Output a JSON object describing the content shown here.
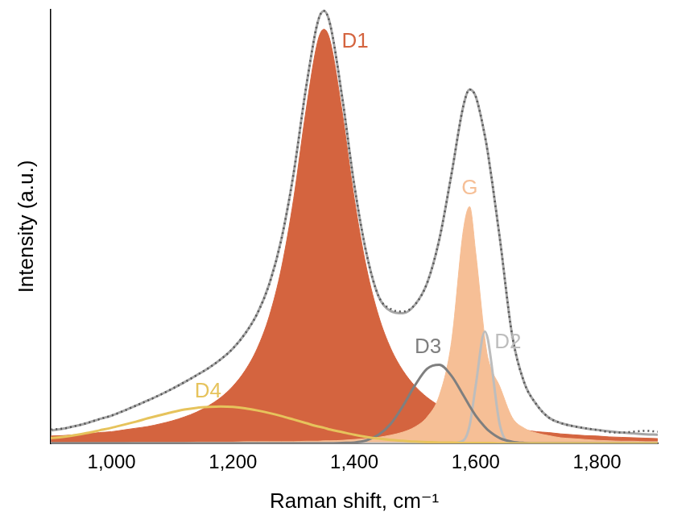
{
  "chart_data": {
    "type": "line",
    "x_label": "Raman shift, cm⁻¹",
    "y_label": "Intensity (a.u.)",
    "x": [
      900,
      920,
      940,
      960,
      980,
      1000,
      1020,
      1040,
      1060,
      1080,
      1100,
      1120,
      1140,
      1160,
      1180,
      1200,
      1220,
      1240,
      1260,
      1280,
      1300,
      1320,
      1340,
      1350,
      1360,
      1380,
      1400,
      1420,
      1440,
      1460,
      1480,
      1500,
      1520,
      1540,
      1560,
      1580,
      1590,
      1600,
      1615,
      1620,
      1640,
      1660,
      1680,
      1700,
      1720,
      1740,
      1760,
      1780,
      1800,
      1820,
      1840,
      1860,
      1880,
      1900
    ],
    "xlim": [
      900,
      1900
    ],
    "xticks": [
      1000,
      1200,
      1400,
      1600,
      1800
    ],
    "ylim": [
      0,
      100
    ],
    "tick_labels": "x",
    "grid": false,
    "series": [
      {
        "name": "D1",
        "type": "area",
        "color": "#d4643f",
        "line_style": "solid",
        "values": [
          1.7,
          1.8,
          2.0,
          2.2,
          2.5,
          2.7,
          3.1,
          3.5,
          3.9,
          4.5,
          5.2,
          6.1,
          7.2,
          8.7,
          10.6,
          13.2,
          16.8,
          21.9,
          29.4,
          40.5,
          56.4,
          76.4,
          92.9,
          95.5,
          92.9,
          76.4,
          56.4,
          40.5,
          29.4,
          21.9,
          16.8,
          13.2,
          10.6,
          8.7,
          7.2,
          6.1,
          5.6,
          5.2,
          4.7,
          4.5,
          3.9,
          3.5,
          3.1,
          2.7,
          2.5,
          2.2,
          2.0,
          1.8,
          1.7,
          1.5,
          1.4,
          1.3,
          1.2,
          1.1
        ]
      },
      {
        "name": "G",
        "type": "area",
        "color": "#f6bf96",
        "line_style": "solid",
        "values": [
          0.1,
          0.1,
          0.1,
          0.1,
          0.1,
          0.1,
          0.1,
          0.2,
          0.2,
          0.2,
          0.2,
          0.2,
          0.3,
          0.3,
          0.3,
          0.3,
          0.4,
          0.4,
          0.4,
          0.4,
          0.4,
          0.5,
          0.5,
          0.6,
          0.6,
          0.7,
          0.9,
          1.1,
          1.4,
          1.9,
          2.6,
          3.8,
          6.1,
          11.0,
          23.3,
          49.5,
          54.6,
          44.0,
          24.3,
          19.8,
          13.0,
          6.0,
          3.5,
          2.4,
          1.8,
          1.3,
          1.1,
          0.9,
          0.7,
          0.6,
          0.5,
          0.5,
          0.4,
          0.4
        ]
      },
      {
        "name": "D2",
        "type": "line",
        "color": "#bdbdbd",
        "line_style": "solid",
        "values": [
          0,
          0,
          0,
          0,
          0,
          0,
          0,
          0,
          0,
          0,
          0,
          0,
          0,
          0,
          0,
          0,
          0,
          0,
          0,
          0,
          0,
          0,
          0,
          0,
          0,
          0,
          0,
          0,
          0,
          0,
          0,
          0,
          0,
          0,
          0,
          0.7,
          4.1,
          13.3,
          25.8,
          24.0,
          4.1,
          0.1,
          0,
          0,
          0,
          0,
          0,
          0,
          0,
          0,
          0,
          0,
          0,
          0
        ]
      },
      {
        "name": "D3",
        "type": "line",
        "color": "#7f7f7f",
        "line_style": "solid",
        "values": [
          0,
          0,
          0,
          0,
          0,
          0,
          0,
          0,
          0,
          0,
          0,
          0,
          0,
          0,
          0,
          0,
          0,
          0,
          0,
          0,
          0,
          0,
          0,
          0,
          0,
          0.1,
          0.2,
          0.7,
          2.0,
          4.5,
          8.6,
          13.4,
          17.2,
          18.1,
          15.6,
          11.0,
          8.6,
          6.4,
          3.8,
          3.1,
          1.2,
          0.4,
          0.1,
          0,
          0,
          0,
          0,
          0,
          0,
          0,
          0,
          0,
          0,
          0
        ]
      },
      {
        "name": "D4",
        "type": "line",
        "color": "#e6c35c",
        "line_style": "solid",
        "values": [
          1.2,
          1.5,
          1.9,
          2.4,
          3.0,
          3.6,
          4.3,
          5.0,
          5.8,
          6.5,
          7.2,
          7.8,
          8.2,
          8.4,
          8.5,
          8.4,
          8.1,
          7.6,
          7.0,
          6.3,
          5.5,
          4.7,
          3.9,
          3.6,
          3.2,
          2.6,
          2.0,
          1.5,
          1.1,
          0.8,
          0.6,
          0.4,
          0.3,
          0.2,
          0.2,
          0.1,
          0.1,
          0.1,
          0.1,
          0.1,
          0,
          0,
          0,
          0,
          0,
          0,
          0,
          0,
          0,
          0,
          0,
          0,
          0,
          0
        ]
      },
      {
        "type": "line",
        "color": "#a6a6a6",
        "line_style": "solid",
        "values": [
          3.0,
          3.4,
          4.0,
          4.7,
          5.6,
          6.4,
          7.5,
          8.7,
          9.9,
          11.2,
          12.6,
          14.1,
          15.7,
          17.4,
          19.4,
          21.9,
          25.3,
          29.9,
          36.8,
          47.2,
          62.3,
          81.6,
          97.3,
          99.7,
          96.7,
          79.8,
          59.5,
          43.8,
          33.9,
          30.5,
          30.0,
          32.0,
          37.0,
          47.0,
          62.0,
          78.0,
          81.6,
          80.0,
          71.0,
          67.0,
          47.0,
          25.0,
          14.0,
          9.0,
          6.0,
          4.7,
          4.0,
          3.5,
          3.1,
          2.8,
          2.5,
          2.3,
          2.1,
          2.0
        ]
      },
      {
        "type": "line",
        "color": "#555555",
        "line_style": "dotted",
        "values": [
          3.2,
          3.4,
          4.0,
          4.7,
          5.6,
          6.4,
          7.5,
          8.7,
          9.9,
          11.2,
          12.6,
          14.1,
          15.7,
          17.4,
          19.4,
          21.9,
          25.3,
          29.9,
          36.8,
          47.2,
          62.3,
          81.6,
          97.3,
          99.7,
          96.7,
          79.8,
          59.5,
          43.8,
          33.9,
          31.0,
          30.4,
          32.0,
          37.0,
          47.0,
          62.0,
          78.0,
          81.6,
          80.0,
          71.0,
          67.0,
          47.0,
          25.0,
          14.0,
          9.0,
          6.0,
          4.7,
          4.0,
          3.5,
          3.1,
          2.6,
          2.5,
          2.7,
          2.9,
          2.7
        ]
      }
    ]
  }
}
